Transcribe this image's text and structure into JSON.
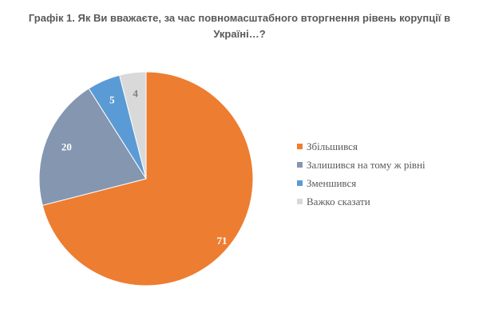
{
  "title": "Графік 1. Як Ви вважаєте, за час повномасштабного вторгнення рівень корупції в Україні…?",
  "title_line1": "Графік 1. Як Ви вважаєте, за час повномасштабного вторгнення рівень корупції в",
  "title_line2": "Україні…?",
  "legend": [
    {
      "label": "Збільшився",
      "color": "#ED7D31"
    },
    {
      "label": "Залишився на тому ж рівні",
      "color": "#8496B0"
    },
    {
      "label": "Зменшився",
      "color": "#5B9BD5"
    },
    {
      "label": "Важко сказати",
      "color": "#D9D9D9"
    }
  ],
  "data_labels": [
    "71",
    "20",
    "5",
    "4"
  ],
  "chart_data": {
    "type": "pie",
    "title": "Графік 1. Як Ви вважаєте, за час повномасштабного вторгнення рівень корупції в Україні…?",
    "categories": [
      "Збільшився",
      "Залишився на тому ж рівні",
      "Зменшився",
      "Важко сказати"
    ],
    "values": [
      71,
      20,
      5,
      4
    ],
    "colors": [
      "#ED7D31",
      "#8496B0",
      "#5B9BD5",
      "#D9D9D9"
    ],
    "start_angle": "12 o'clock, clockwise",
    "legend_position": "right",
    "data_labels_shown": true
  }
}
